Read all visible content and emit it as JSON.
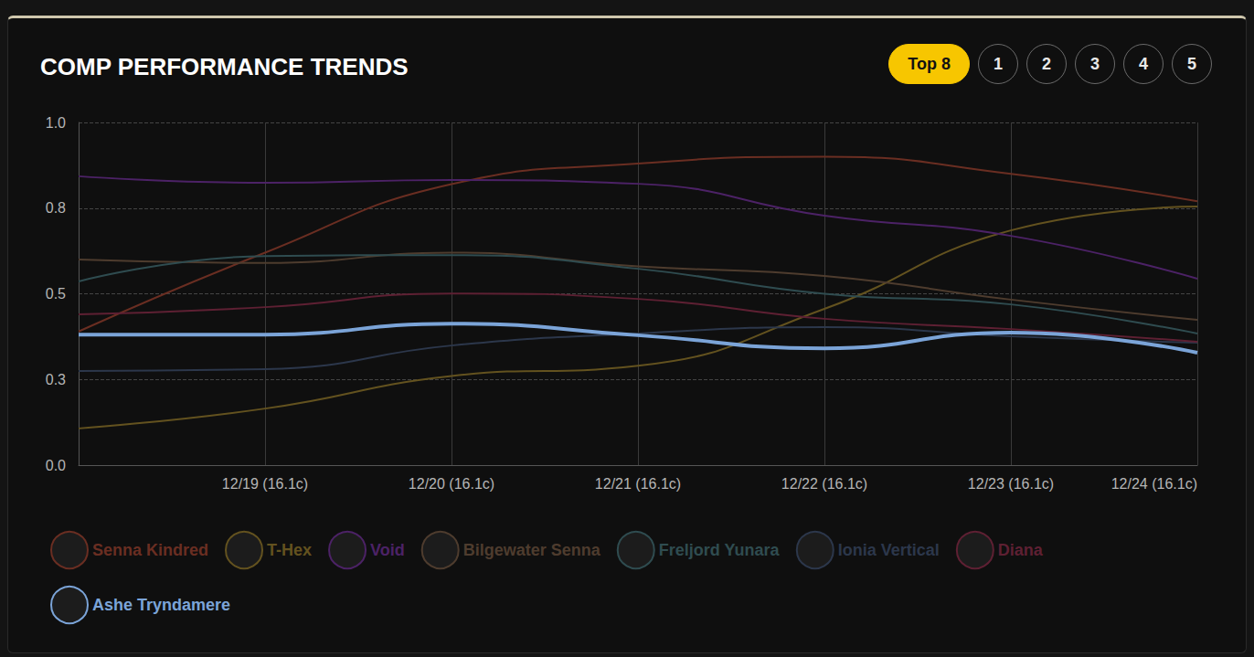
{
  "chart_data": {
    "type": "line",
    "title": "COMP PERFORMANCE TRENDS",
    "categories": [
      null,
      "12/19 (16.1c)",
      "12/20 (16.1c)",
      "12/21 (16.1c)",
      "12/22 (16.1c)",
      "12/23 (16.1c)",
      "12/24 (16.1c)"
    ],
    "series": [
      {
        "name": "Senna Kindred",
        "color": "#6a2e22",
        "line_style": "solid",
        "values": [
          0.39,
          0.62,
          0.82,
          0.88,
          0.9,
          0.85,
          0.77
        ]
      },
      {
        "name": "T-Hex",
        "color": "#63521f",
        "line_style": "solid",
        "values": [
          0.107,
          0.165,
          0.26,
          0.29,
          0.456,
          0.685,
          0.755
        ]
      },
      {
        "name": "Void",
        "color": "#4c2266",
        "line_style": "solid",
        "values": [
          0.843,
          0.824,
          0.832,
          0.821,
          0.728,
          0.669,
          0.544
        ]
      },
      {
        "name": "Bilgewater Senna",
        "color": "#4e3c2e",
        "line_style": "solid",
        "values": [
          0.6,
          0.59,
          0.62,
          0.58,
          0.552,
          0.483,
          0.424
        ]
      },
      {
        "name": "Freljord Yunara",
        "color": "#2f4c50",
        "line_style": "solid",
        "values": [
          0.536,
          0.61,
          0.613,
          0.573,
          0.5,
          0.469,
          0.384
        ]
      },
      {
        "name": "Ionia Vertical",
        "color": "#2c374b",
        "line_style": "solid",
        "values": [
          0.275,
          0.28,
          0.349,
          0.384,
          0.403,
          0.376,
          0.357
        ]
      },
      {
        "name": "Diana",
        "color": "#5e2033",
        "line_style": "solid",
        "values": [
          0.44,
          0.461,
          0.501,
          0.485,
          0.427,
          0.397,
          0.36
        ]
      },
      {
        "name": "Ashe Tryndamere",
        "color": "#7ba4d8",
        "line_style": "bold",
        "values": [
          0.381,
          0.381,
          0.413,
          0.379,
          0.341,
          0.387,
          0.328
        ]
      }
    ],
    "ylim": [
      0,
      1
    ],
    "yticks": [
      {
        "value": 0,
        "label": "0.0"
      },
      {
        "value": 0.25,
        "label": "0.3"
      },
      {
        "value": 0.5,
        "label": "0.5"
      },
      {
        "value": 0.75,
        "label": "0.8"
      },
      {
        "value": 1,
        "label": "1.0"
      }
    ],
    "grid": true,
    "legend": "bottom"
  },
  "buttons": [
    "Top 8",
    "1",
    "2",
    "3",
    "4",
    "5"
  ]
}
